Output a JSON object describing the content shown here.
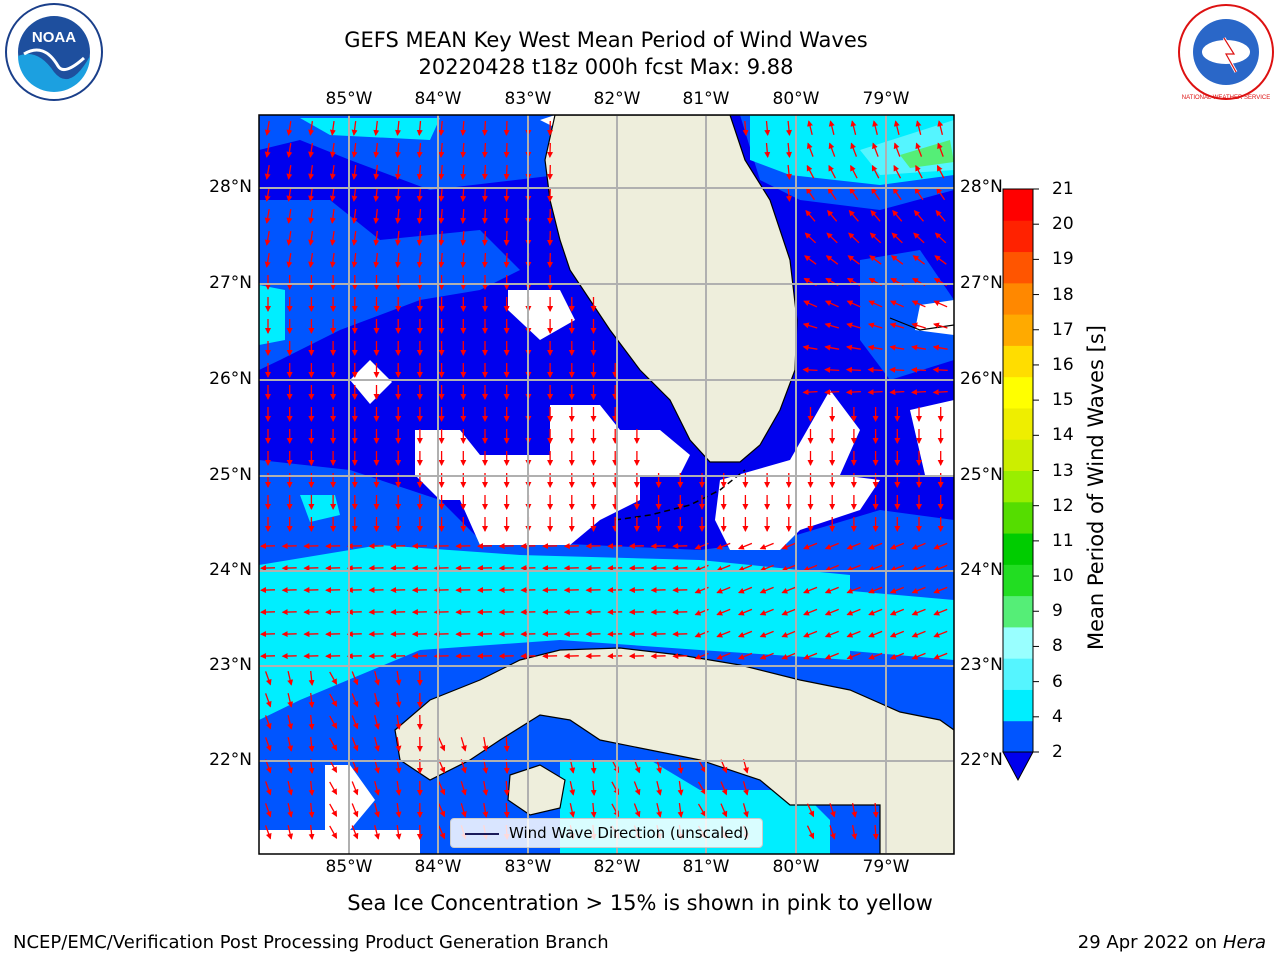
{
  "header": {
    "title_line1": "GEFS MEAN Key West Mean Period of Wind Waves",
    "title_line2": "20220428 t18z 000h fcst   Max: 9.88",
    "left_logo_text": "NOAA",
    "right_logo_text": "NATIONAL WEATHER SERVICE"
  },
  "map": {
    "lon_labels": [
      "85°W",
      "84°W",
      "83°W",
      "82°W",
      "81°W",
      "80°W",
      "79°W"
    ],
    "lat_labels": [
      "28°N",
      "27°N",
      "26°N",
      "25°N",
      "24°N",
      "23°N",
      "22°N"
    ],
    "legend_label": "Wind Wave Direction (unscaled)",
    "arrow_color": "#ff0000",
    "land_color": "#eeeedc",
    "grid_color": "#b0b0b0"
  },
  "colorbar": {
    "label": "Mean Period of Wind Waves [s]",
    "ticks": [
      "21",
      "20",
      "19",
      "18",
      "17",
      "16",
      "15",
      "14",
      "13",
      "12",
      "11",
      "10",
      "9",
      "8",
      "6",
      "4",
      "2"
    ],
    "colors_bottom_to_top": [
      "#0055ff",
      "#00eeff",
      "#55f5ff",
      "#99ffff",
      "#55ee77",
      "#22dd22",
      "#00cc00",
      "#55dd00",
      "#99ee00",
      "#ccee00",
      "#eeee00",
      "#ffff00",
      "#ffdd00",
      "#ffaa00",
      "#ff8800",
      "#ff5500",
      "#ff2200",
      "#ff0000"
    ],
    "under_color": "#0000ee"
  },
  "notes": {
    "sea_ice": "Sea Ice Concentration > 15% is shown in pink to yellow"
  },
  "footer": {
    "left": "NCEP/EMC/Verification Post Processing Product Generation Branch",
    "date": "29 Apr 2022 on",
    "machine": "Hera"
  }
}
